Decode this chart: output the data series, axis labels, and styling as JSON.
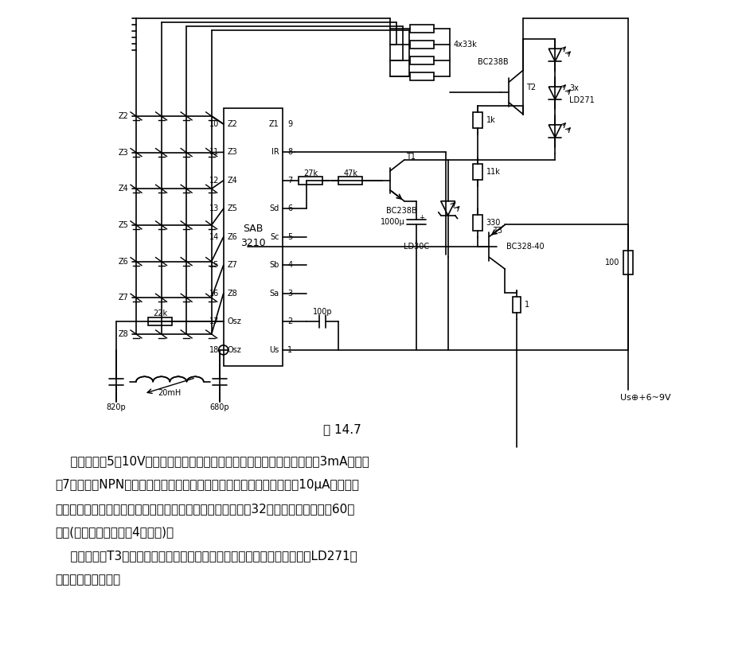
{
  "fig_label": "图 14.7",
  "bg_color": "#ffffff",
  "text_color": "#000000",
  "figsize": [
    9.28,
    8.17
  ],
  "dpi": 100,
  "para1": "    电源电压为5～10V，适于电池供电。工作时除末级外整个电路吸收电流为3mA。通过",
  "para2": "脚7接入一个NPN晶体管可使静止状态下电路同电池分离，其吸收电流在10μA以下。为",
  "para3": "使发射器接通和发出指令，需采用四列八行连线，直接可产生32条指令，并可扩展成60条",
  "para4": "指令(每二个二极管产生4条指令)。",
  "para5": "    末级晶体管T3为恒流源，这可保证在电源电压降低时能由三个发光二极管LD271显",
  "para6": "示出供电电压情况。"
}
